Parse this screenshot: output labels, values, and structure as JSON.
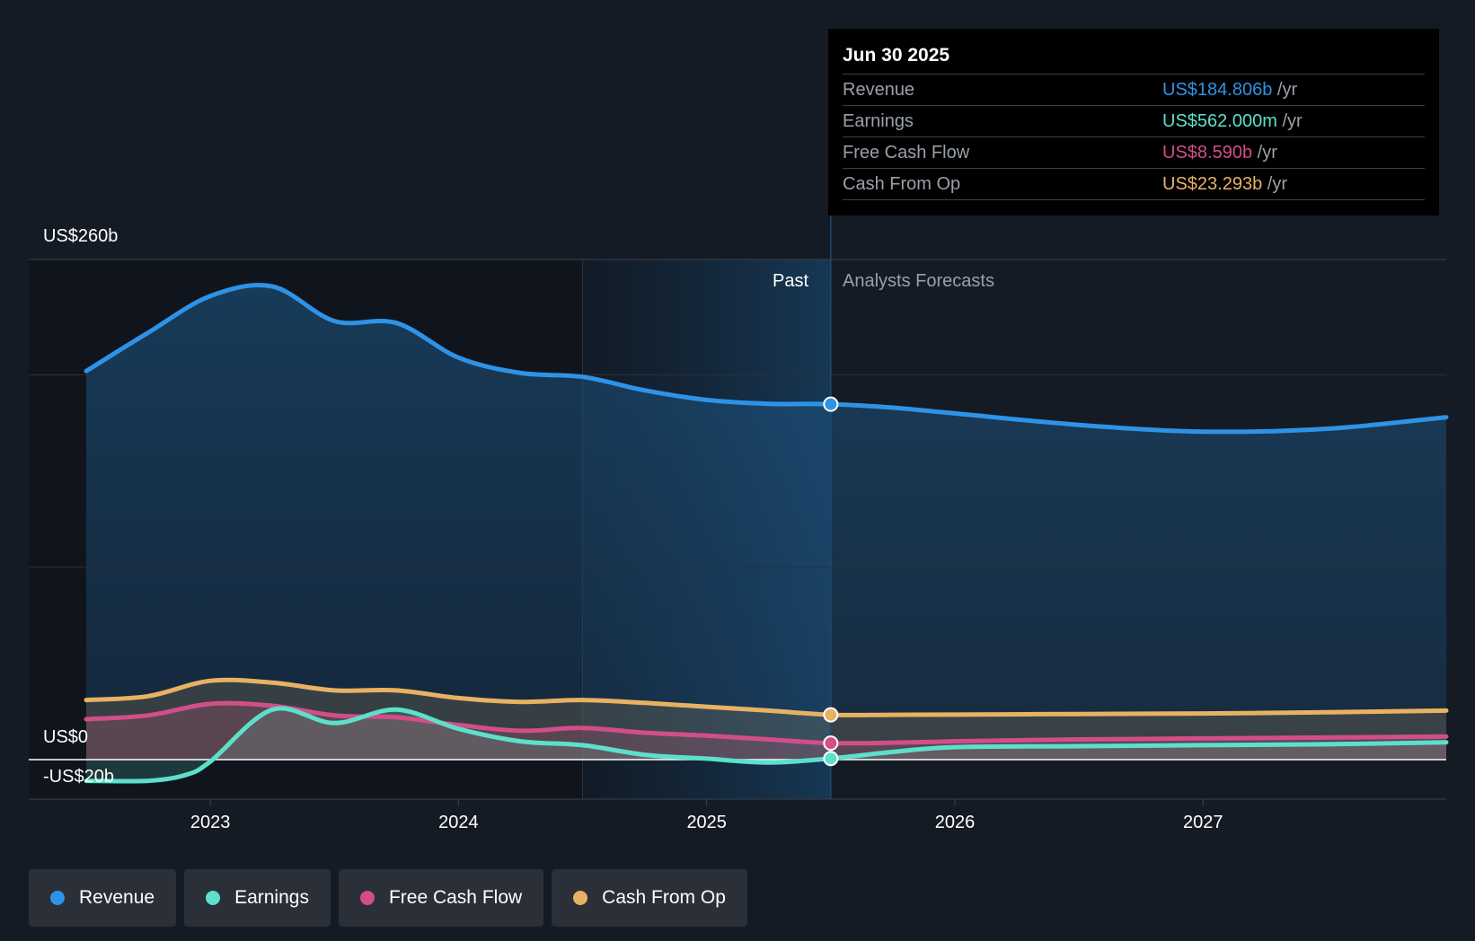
{
  "tooltip": {
    "date": "Jun 30 2025",
    "rows": [
      {
        "label": "Revenue",
        "value": "US$184.806b",
        "unit": "/yr",
        "color": "#2e93e6"
      },
      {
        "label": "Earnings",
        "value": "US$562.000m",
        "unit": "/yr",
        "color": "#5ce0cc"
      },
      {
        "label": "Free Cash Flow",
        "value": "US$8.590b",
        "unit": "/yr",
        "color": "#d24e8a"
      },
      {
        "label": "Cash From Op",
        "value": "US$23.293b",
        "unit": "/yr",
        "color": "#e8b263"
      }
    ]
  },
  "chart_data": {
    "type": "line",
    "title": "",
    "y_top_label": "US$260b",
    "y_zero_label": "US$0",
    "y_min_label": "-US$20b",
    "ylim": [
      -20,
      260
    ],
    "xlim": [
      2022.5,
      2027.98
    ],
    "x_ticks": [
      2023,
      2024,
      2025,
      2026,
      2027
    ],
    "past_label": "Past",
    "forecast_label": "Analysts Forecasts",
    "divider_x": 2025.5,
    "shade_start_x": 2024.5,
    "series": [
      {
        "name": "Revenue",
        "color": "#2e93e6",
        "x": [
          2022.5,
          2022.75,
          2023.0,
          2023.25,
          2023.5,
          2023.75,
          2024.0,
          2024.25,
          2024.5,
          2024.75,
          2025.0,
          2025.25,
          2025.5,
          2025.75,
          2026.0,
          2026.5,
          2027.0,
          2027.5,
          2027.98
        ],
        "values": [
          202,
          222,
          241,
          246,
          228,
          227,
          209,
          201,
          199,
          192,
          187,
          185,
          184.8,
          183,
          180,
          174,
          170.5,
          172,
          178
        ]
      },
      {
        "name": "Earnings",
        "color": "#5ce0cc",
        "x": [
          2022.5,
          2022.75,
          2022.9,
          2023.0,
          2023.25,
          2023.5,
          2023.75,
          2024.0,
          2024.25,
          2024.5,
          2024.75,
          2025.0,
          2025.25,
          2025.5,
          2025.75,
          2026.0,
          2026.5,
          2027.0,
          2027.5,
          2027.98
        ],
        "values": [
          -11,
          -11,
          -8,
          -1,
          26,
          19,
          26,
          16,
          9.5,
          7.5,
          2.5,
          0.5,
          -1.5,
          0.56,
          4,
          6.5,
          7,
          7.5,
          8,
          9
        ]
      },
      {
        "name": "Free Cash Flow",
        "color": "#d24e8a",
        "x": [
          2022.5,
          2022.75,
          2023.0,
          2023.25,
          2023.5,
          2023.75,
          2024.0,
          2024.25,
          2024.5,
          2024.75,
          2025.0,
          2025.25,
          2025.5,
          2025.75,
          2026.0,
          2026.5,
          2027.0,
          2027.5,
          2027.98
        ],
        "values": [
          21,
          23,
          29,
          28,
          23,
          22,
          18,
          15,
          16.5,
          14,
          12.5,
          10.5,
          8.59,
          8.8,
          9.5,
          10.5,
          11,
          11.5,
          12
        ]
      },
      {
        "name": "Cash From Op",
        "color": "#e8b263",
        "x": [
          2022.5,
          2022.75,
          2023.0,
          2023.25,
          2023.5,
          2023.75,
          2024.0,
          2024.25,
          2024.5,
          2024.75,
          2025.0,
          2025.25,
          2025.5,
          2025.75,
          2026.0,
          2026.5,
          2027.0,
          2027.5,
          2027.98
        ],
        "values": [
          31,
          33,
          41,
          40,
          36,
          36,
          32,
          30,
          31,
          29.5,
          27.5,
          25.5,
          23.29,
          23.3,
          23.4,
          23.7,
          24,
          24.6,
          25.5
        ]
      }
    ]
  },
  "legend": [
    {
      "label": "Revenue",
      "color": "#2e93e6"
    },
    {
      "label": "Earnings",
      "color": "#5ce0cc"
    },
    {
      "label": "Free Cash Flow",
      "color": "#d24e8a"
    },
    {
      "label": "Cash From Op",
      "color": "#e8b263"
    }
  ]
}
